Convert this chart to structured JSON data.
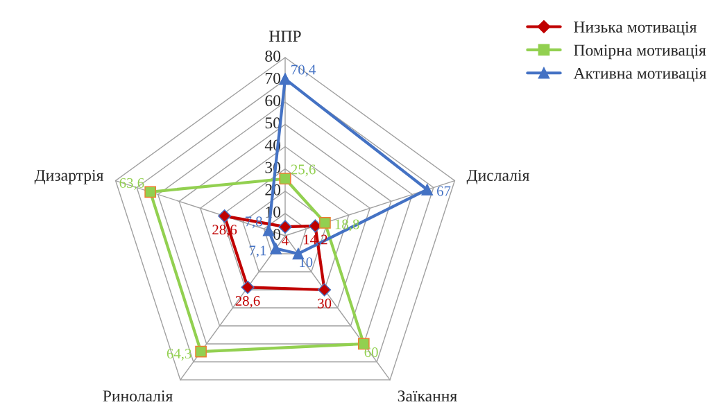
{
  "chart_data": {
    "type": "radar",
    "categories": [
      "НПР",
      "Дислалія",
      "Заїкання",
      "Ринолалія",
      "Дизартрія"
    ],
    "ylim": [
      0,
      80
    ],
    "yticks": [
      0,
      10,
      20,
      30,
      40,
      50,
      60,
      70,
      80
    ],
    "grid": true,
    "legend": "top right",
    "data_labels": true,
    "series": [
      {
        "name": "Низька мотивація",
        "color": "#c00000",
        "marker": "diamond",
        "values": [
          4,
          14.2,
          30,
          28.6,
          28.6
        ],
        "value_labels": [
          "4",
          "14,2",
          "30",
          "28,6",
          "28,6"
        ]
      },
      {
        "name": "Помірна мотивація",
        "color": "#92d050",
        "marker": "square",
        "values": [
          25.6,
          18.8,
          60,
          64.3,
          63.6
        ],
        "value_labels": [
          "25,6",
          "18,8",
          "60",
          "64,3",
          "63,6"
        ]
      },
      {
        "name": "Активна мотивація",
        "color": "#4472c4",
        "marker": "triangle",
        "values": [
          70.4,
          67,
          10,
          7.1,
          7.8
        ],
        "value_labels": [
          "70,4",
          "67",
          "10",
          "7,1",
          "7,8"
        ]
      }
    ]
  }
}
